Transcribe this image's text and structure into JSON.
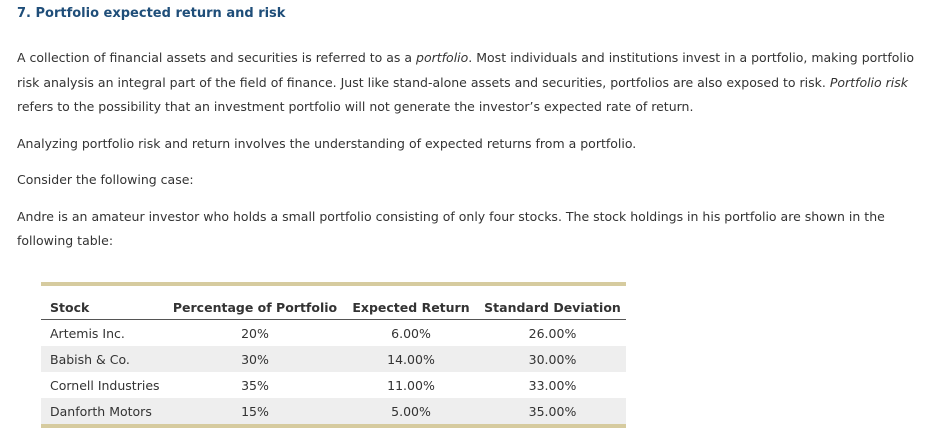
{
  "title": "7. Portfolio expected return and risk",
  "paragraph1": {
    "part1": "A collection of financial assets and securities is referred to as a ",
    "em1": "portfolio",
    "part2": ". Most individuals and institutions invest in a portfolio, making portfolio risk analysis an integral part of the field of finance. Just like stand-alone assets and securities, portfolios are also exposed to risk. ",
    "em2": "Portfolio risk",
    "part3": " refers to the possibility that an investment portfolio will not generate the investor’s expected rate of return."
  },
  "paragraph2": "Analyzing portfolio risk and return involves the understanding of expected returns from a portfolio.",
  "paragraph3": "Consider the following case:",
  "paragraph4": "Andre is an amateur investor who holds a small portfolio consisting of only four stocks. The stock holdings in his portfolio are shown in the following table:",
  "table": {
    "headers": [
      "Stock",
      "Percentage of Portfolio",
      "Expected Return",
      "Standard Deviation"
    ],
    "rows": [
      [
        "Artemis Inc.",
        "20%",
        "6.00%",
        "26.00%"
      ],
      [
        "Babish & Co.",
        "30%",
        "14.00%",
        "30.00%"
      ],
      [
        "Cornell Industries",
        "35%",
        "11.00%",
        "33.00%"
      ],
      [
        "Danforth Motors",
        "15%",
        "5.00%",
        "35.00%"
      ]
    ]
  },
  "colors": {
    "title": "#1f4e79",
    "table_rule": "#d6cb9f",
    "row_shade": "#eeeeee"
  }
}
